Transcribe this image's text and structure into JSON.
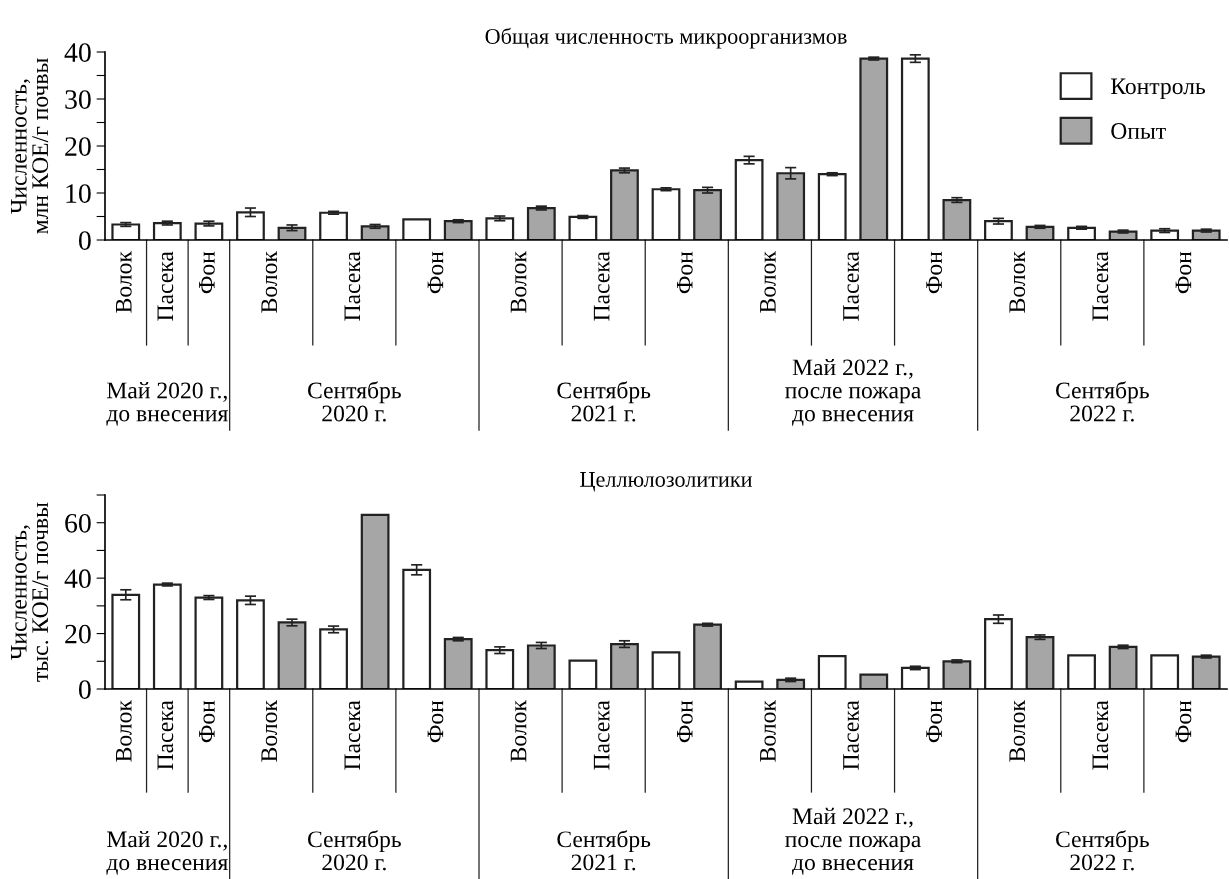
{
  "chart_data": [
    {
      "type": "bar",
      "title": "Общая численность микроорганизмов",
      "ylabel": "Численность,\nмлн КОЕ/г почвы",
      "categories": [
        "Волок",
        "Пасека",
        "Фон",
        "Волок",
        "Пасека",
        "Фон",
        "Волок",
        "Пасека",
        "Фон",
        "Волок",
        "Пасека",
        "Фон",
        "Волок",
        "Пасека",
        "Фон"
      ],
      "annotations": [
        "Май 2020 г.,\nдо внесения",
        "Сентябрь\n2020 г.",
        "Сентябрь\n2021 г.",
        "Май 2022 г.,\nпосле пожара\nдо внесения",
        "Сентябрь\n2022 г."
      ],
      "series": [
        {
          "name": "Контроль",
          "color": "#ffffff",
          "values": [
            3.3,
            3.6,
            3.5,
            5.9,
            5.8,
            4.4,
            4.6,
            4.9,
            10.8,
            17.0,
            14.0,
            38.6,
            4.0,
            2.6,
            2.0
          ],
          "errors": [
            0.4,
            0.4,
            0.5,
            0.9,
            0.3,
            null,
            0.5,
            0.3,
            0.3,
            0.8,
            0.3,
            0.8,
            0.6,
            0.3,
            0.4
          ]
        },
        {
          "name": "Опыт",
          "color": "#a6a6a6",
          "values": [
            null,
            null,
            null,
            2.6,
            2.9,
            4.0,
            6.8,
            14.8,
            10.6,
            14.2,
            38.6,
            8.5,
            2.8,
            1.8,
            2.0
          ],
          "errors": [
            null,
            null,
            null,
            0.6,
            0.4,
            0.3,
            0.4,
            0.5,
            0.6,
            1.2,
            0.3,
            0.5,
            0.3,
            0.3,
            0.3
          ]
        }
      ],
      "ylim": [
        0,
        40
      ],
      "yticks": [
        0,
        {
          "value": 5,
          "label": null
        },
        10,
        {
          "value": 15,
          "label": null
        },
        20,
        {
          "value": 25,
          "label": null
        },
        30,
        {
          "value": 35,
          "label": null
        },
        40
      ],
      "legend": "top right",
      "grid": false
    },
    {
      "type": "bar",
      "title": "Целлюлозолитики",
      "ylabel": "Численность,\nтыс. КОЕ/г почвы",
      "categories": [
        "Волок",
        "Пасека",
        "Фон",
        "Волок",
        "Пасека",
        "Фон",
        "Волок",
        "Пасека",
        "Фон",
        "Волок",
        "Пасека",
        "Фон",
        "Волок",
        "Пасека",
        "Фон"
      ],
      "annotations": [
        "Май 2020 г.,\nдо внесения",
        "Сентябрь\n2020 г.",
        "Сентябрь\n2021 г.",
        "Май 2022 г.,\nпосле пожара\nдо внесения",
        "Сентябрь\n2022 г."
      ],
      "series": [
        {
          "color": "#ffffff",
          "values": [
            34.0,
            37.7,
            33.0,
            32.0,
            21.5,
            43.0,
            14.0,
            10.2,
            13.2,
            2.7,
            11.9,
            7.6,
            25.2,
            12.1,
            12.1
          ],
          "errors": [
            1.8,
            0.5,
            0.7,
            1.5,
            1.2,
            1.8,
            1.2,
            null,
            null,
            null,
            null,
            0.6,
            1.5,
            null,
            null
          ]
        },
        {
          "color": "#a6a6a6",
          "values": [
            null,
            null,
            null,
            24.0,
            62.8,
            18.0,
            15.7,
            16.2,
            23.2,
            3.3,
            5.2,
            10.0,
            18.7,
            15.2,
            11.7
          ],
          "errors": [
            null,
            null,
            null,
            1.2,
            null,
            0.6,
            1.1,
            1.2,
            0.5,
            0.6,
            null,
            0.5,
            0.8,
            0.6,
            0.5
          ]
        }
      ],
      "ylim": [
        0,
        70
      ],
      "yticks": [
        0,
        {
          "value": 10,
          "label": null
        },
        20,
        {
          "value": 30,
          "label": null
        },
        40,
        {
          "value": 50,
          "label": null
        },
        60,
        {
          "value": 70,
          "label": null
        }
      ],
      "legend": false,
      "grid": false
    }
  ]
}
